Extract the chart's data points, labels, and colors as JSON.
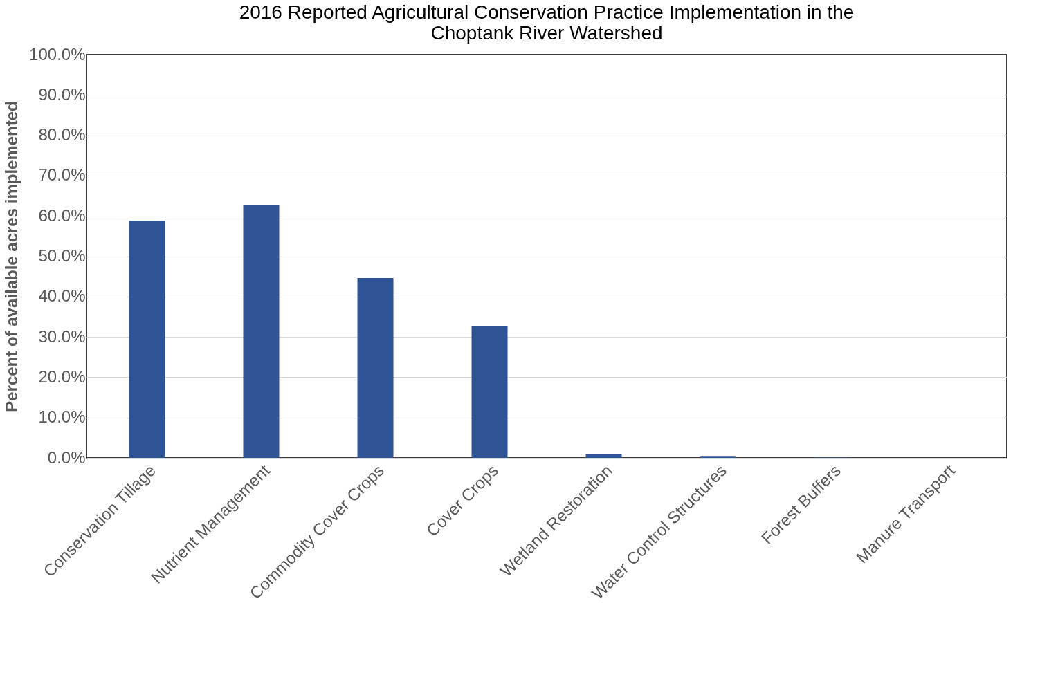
{
  "chart_data": {
    "type": "bar",
    "title": "2016 Reported Agricultural Conservation Practice Implementation in the Choptank River Watershed",
    "ylabel": "Percent of available acres implemented",
    "categories": [
      "Conservation Tillage",
      "Nutrient Management",
      "Commodity Cover Crops",
      "Cover Crops",
      "Wetland Restoration",
      "Water Control Structures",
      "Forest Buffers",
      "Manure Transport"
    ],
    "values": [
      58.8,
      62.8,
      44.6,
      32.6,
      1.0,
      0.3,
      0.1,
      0.0
    ],
    "color": "#2f5597",
    "ylim": [
      0,
      100
    ],
    "yticks": [
      {
        "value": 0,
        "label": "0.0%"
      },
      {
        "value": 10,
        "label": "10.0%"
      },
      {
        "value": 20,
        "label": "20.0%"
      },
      {
        "value": 30,
        "label": "30.0%"
      },
      {
        "value": 40,
        "label": "40.0%"
      },
      {
        "value": 50,
        "label": "50.0%"
      },
      {
        "value": 60,
        "label": "60.0%"
      },
      {
        "value": 70,
        "label": "70.0%"
      },
      {
        "value": 80,
        "label": "80.0%"
      },
      {
        "value": 90,
        "label": "90.0%"
      },
      {
        "value": 100,
        "label": "100.0%"
      }
    ],
    "grid": "y"
  }
}
